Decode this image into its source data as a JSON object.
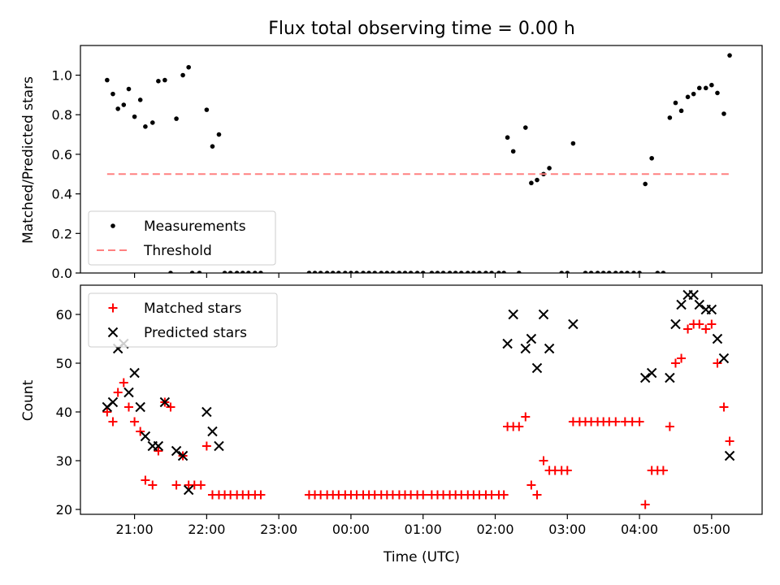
{
  "chart_data": [
    {
      "type": "scatter",
      "title": "Flux total observing time = 0.00 h",
      "xlabel": "",
      "ylabel": "Matched/Predicted stars",
      "ylim": [
        0,
        1.15
      ],
      "yticks": [
        0.0,
        0.2,
        0.4,
        0.6,
        0.8,
        1.0
      ],
      "ytick_labels": [
        "0.0",
        "0.2",
        "0.4",
        "0.6",
        "0.8",
        "1.0"
      ],
      "legend_position": "lower-left",
      "series": [
        {
          "name": "Measurements",
          "color": "#000000",
          "marker": "dot",
          "x": [
            20.62,
            20.7,
            20.77,
            20.85,
            20.92,
            21.0,
            21.08,
            21.15,
            21.25,
            21.33,
            21.42,
            21.58,
            21.67,
            21.75,
            22.0,
            22.08,
            22.17,
            21.5,
            21.8,
            21.9,
            22.25,
            22.33,
            22.42,
            22.5,
            22.58,
            22.67,
            22.75,
            23.42,
            23.5,
            23.58,
            23.67,
            23.75,
            23.83,
            23.92,
            24.0,
            24.08,
            24.17,
            24.25,
            24.33,
            24.42,
            24.5,
            24.58,
            24.67,
            24.75,
            24.83,
            24.92,
            25.0,
            25.12,
            25.2,
            25.28,
            25.37,
            25.45,
            25.53,
            25.62,
            25.7,
            25.78,
            25.87,
            25.95,
            26.05,
            26.12,
            26.33,
            26.17,
            26.25,
            26.42,
            26.5,
            26.58,
            26.67,
            26.75,
            27.08,
            26.92,
            27.0,
            27.25,
            27.33,
            27.42,
            27.5,
            27.58,
            27.67,
            27.75,
            27.83,
            27.92,
            28.0,
            28.25,
            28.33,
            28.08,
            28.17,
            28.42,
            28.5,
            28.58,
            28.67,
            28.75,
            28.83,
            28.92,
            29.0,
            29.08,
            29.17,
            29.25
          ],
          "y": [
            0.975,
            0.905,
            0.83,
            0.85,
            0.93,
            0.79,
            0.875,
            0.74,
            0.76,
            0.97,
            0.975,
            0.78,
            1.0,
            1.04,
            0.825,
            0.64,
            0.7,
            0,
            0,
            0,
            0,
            0,
            0,
            0,
            0,
            0,
            0,
            0,
            0,
            0,
            0,
            0,
            0,
            0,
            0,
            0,
            0,
            0,
            0,
            0,
            0,
            0,
            0,
            0,
            0,
            0,
            0,
            0,
            0,
            0,
            0,
            0,
            0,
            0,
            0,
            0,
            0,
            0,
            0,
            0,
            0,
            0.685,
            0.615,
            0.735,
            0.455,
            0.47,
            0.5,
            0.53,
            0.655,
            0,
            0,
            0,
            0,
            0,
            0,
            0,
            0,
            0,
            0,
            0,
            0,
            0,
            0,
            0.45,
            0.58,
            0.785,
            0.86,
            0.82,
            0.89,
            0.905,
            0.935,
            0.935,
            0.95,
            0.91,
            0.805,
            1.1
          ]
        },
        {
          "name": "Threshold",
          "color": "#ff8080",
          "style": "dashed",
          "x": [
            20.62,
            29.25
          ],
          "y": [
            0.5,
            0.5
          ]
        }
      ]
    },
    {
      "type": "scatter",
      "title": "",
      "xlabel": "Time (UTC)",
      "ylabel": "Count",
      "xlim": [
        20.25,
        29.7
      ],
      "xticks": [
        21,
        22,
        23,
        24,
        25,
        26,
        27,
        28,
        29
      ],
      "xtick_labels": [
        "21:00",
        "22:00",
        "23:00",
        "00:00",
        "01:00",
        "02:00",
        "03:00",
        "04:00",
        "05:00"
      ],
      "ylim": [
        19,
        66
      ],
      "yticks": [
        20,
        30,
        40,
        50,
        60
      ],
      "ytick_labels": [
        "20",
        "30",
        "40",
        "50",
        "60"
      ],
      "legend_position": "upper-left",
      "series": [
        {
          "name": "Matched stars",
          "color": "#ff0000",
          "marker": "plus",
          "x": [
            20.62,
            20.7,
            20.77,
            20.85,
            20.92,
            21.0,
            21.08,
            21.15,
            21.25,
            21.33,
            21.42,
            21.5,
            21.58,
            21.67,
            21.75,
            21.83,
            21.92,
            22.0,
            22.08,
            22.17,
            22.25,
            22.33,
            22.42,
            22.5,
            22.58,
            22.67,
            22.75,
            23.42,
            23.5,
            23.58,
            23.67,
            23.75,
            23.83,
            23.92,
            24.0,
            24.08,
            24.17,
            24.25,
            24.33,
            24.42,
            24.5,
            24.58,
            24.67,
            24.75,
            24.83,
            24.92,
            25.0,
            25.12,
            25.2,
            25.28,
            25.37,
            25.45,
            25.53,
            25.62,
            25.7,
            25.78,
            25.87,
            25.95,
            26.05,
            26.12,
            26.17,
            26.25,
            26.33,
            26.42,
            26.5,
            26.58,
            26.67,
            26.75,
            26.83,
            26.92,
            27.0,
            27.08,
            27.17,
            27.25,
            27.33,
            27.42,
            27.5,
            27.58,
            27.67,
            27.8,
            27.9,
            28.0,
            28.08,
            28.17,
            28.25,
            28.33,
            28.42,
            28.5,
            28.58,
            28.67,
            28.75,
            28.83,
            28.92,
            29.0,
            29.08,
            29.17,
            29.25
          ],
          "y": [
            40,
            38,
            44,
            46,
            41,
            38,
            36,
            26,
            25,
            32,
            42,
            41,
            25,
            31,
            25,
            25,
            25,
            33,
            23,
            23,
            23,
            23,
            23,
            23,
            23,
            23,
            23,
            23,
            23,
            23,
            23,
            23,
            23,
            23,
            23,
            23,
            23,
            23,
            23,
            23,
            23,
            23,
            23,
            23,
            23,
            23,
            23,
            23,
            23,
            23,
            23,
            23,
            23,
            23,
            23,
            23,
            23,
            23,
            23,
            23,
            37,
            37,
            37,
            39,
            25,
            23,
            30,
            28,
            28,
            28,
            28,
            38,
            38,
            38,
            38,
            38,
            38,
            38,
            38,
            38,
            38,
            38,
            21,
            28,
            28,
            28,
            37,
            50,
            51,
            57,
            58,
            58,
            57,
            58,
            50,
            41,
            34
          ]
        },
        {
          "name": "Predicted stars",
          "color": "#000000",
          "marker": "x",
          "x": [
            20.62,
            20.7,
            20.77,
            20.85,
            20.92,
            21.0,
            21.08,
            21.15,
            21.25,
            21.33,
            21.42,
            21.58,
            21.67,
            21.75,
            22.0,
            22.08,
            22.17,
            26.17,
            26.25,
            26.42,
            26.5,
            26.58,
            26.67,
            26.75,
            27.08,
            28.08,
            28.17,
            28.42,
            28.5,
            28.58,
            28.67,
            28.75,
            28.83,
            28.92,
            29.0,
            29.08,
            29.17,
            29.25
          ],
          "y": [
            41,
            42,
            53,
            54,
            44,
            48,
            41,
            35,
            33,
            33,
            42,
            32,
            31,
            24,
            40,
            36,
            33,
            54,
            60,
            53,
            55,
            49,
            60,
            53,
            58,
            47,
            48,
            47,
            58,
            62,
            64,
            64,
            62,
            61,
            61,
            55,
            51,
            31
          ]
        }
      ]
    }
  ]
}
